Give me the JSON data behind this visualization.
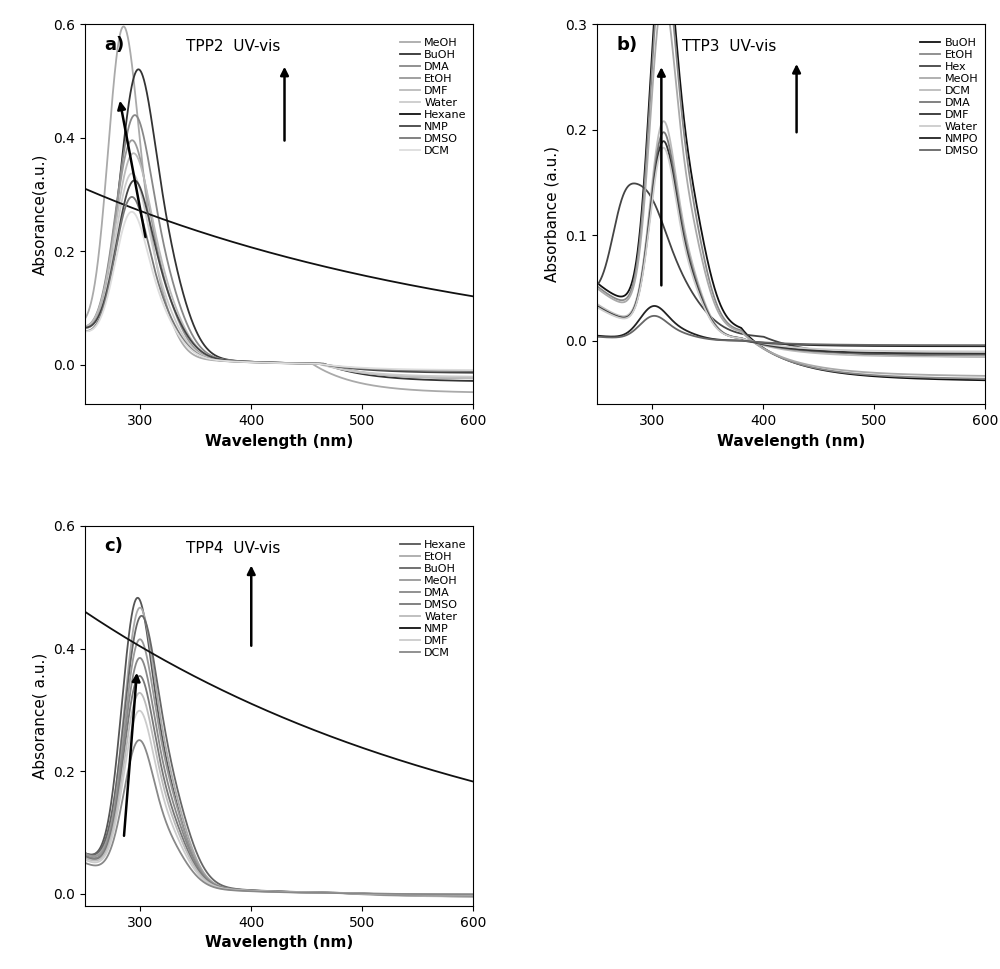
{
  "fig_width": 10.0,
  "fig_height": 9.69,
  "panel_a": {
    "title": "TPP2  UV-vis",
    "label": "a)",
    "ylabel": "Absorance(a.u.)",
    "xlabel": "Wavelength (nm)",
    "xlim": [
      250,
      600
    ],
    "ylim": [
      -0.07,
      0.6
    ],
    "yticks": [
      0.0,
      0.2,
      0.4,
      0.6
    ],
    "xticks": [
      300,
      400,
      500,
      600
    ],
    "solvents": [
      "MeOH",
      "BuOH",
      "DMA",
      "EtOH",
      "DMF",
      "Water",
      "Hexane",
      "NMP",
      "DMSO",
      "DCM"
    ],
    "colors": [
      "#aaaaaa",
      "#444444",
      "#888888",
      "#999999",
      "#bbbbbb",
      "#cccccc",
      "#111111",
      "#333333",
      "#777777",
      "#bbbbbb"
    ]
  },
  "panel_b": {
    "title": "TTP3  UV-vis",
    "label": "b)",
    "ylabel": "Absorbance (a.u.)",
    "xlabel": "Wavelength (nm)",
    "xlim": [
      250,
      600
    ],
    "ylim": [
      -0.06,
      0.3
    ],
    "yticks": [
      0.0,
      0.1,
      0.2,
      0.3
    ],
    "xticks": [
      300,
      400,
      500,
      600
    ],
    "solvents": [
      "BuOH",
      "EtOH",
      "Hex",
      "MeOH",
      "DCM",
      "DMA",
      "DMF",
      "Water",
      "NMPO",
      "DMSO"
    ],
    "colors": [
      "#111111",
      "#888888",
      "#444444",
      "#aaaaaa",
      "#999999",
      "#777777",
      "#333333",
      "#bbbbbb",
      "#222222",
      "#555555"
    ]
  },
  "panel_c": {
    "title": "TPP4  UV-vis",
    "label": "c)",
    "ylabel": "Absorance( a.u.)",
    "xlabel": "Wavelength (nm)",
    "xlim": [
      250,
      600
    ],
    "ylim": [
      -0.02,
      0.6
    ],
    "yticks": [
      0.0,
      0.2,
      0.4,
      0.6
    ],
    "xticks": [
      300,
      400,
      500,
      600
    ],
    "solvents": [
      "Hexane",
      "EtOH",
      "BuOH",
      "MeOH",
      "DMA",
      "DMSO",
      "Water",
      "NMP",
      "DMF",
      "DCM"
    ],
    "colors": [
      "#555555",
      "#aaaaaa",
      "#666666",
      "#999999",
      "#888888",
      "#777777",
      "#bbbbbb",
      "#111111",
      "#cccccc",
      "#888888"
    ]
  }
}
